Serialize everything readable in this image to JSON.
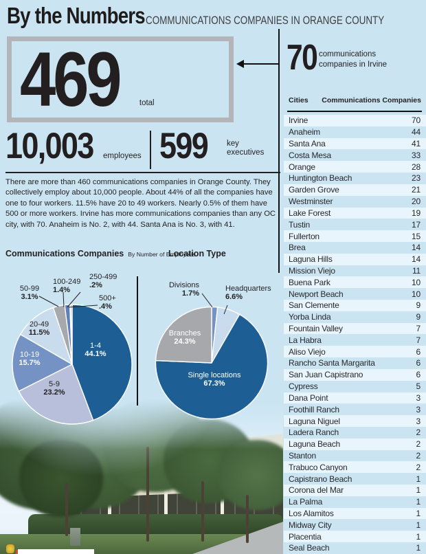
{
  "header": {
    "title": "By the Numbers",
    "subtitle": "COMMUNICATIONS COMPANIES IN ORANGE COUNTY"
  },
  "stats": {
    "total": {
      "value": "469",
      "label": "total"
    },
    "employees": {
      "value": "10,003",
      "label": "employees"
    },
    "executives": {
      "value": "599",
      "label": "key\nexecutives"
    }
  },
  "callout": {
    "value": "70",
    "label": "communications\ncompanies in Irvine"
  },
  "paragraph": "There are more than 460 communications companies in Orange County. They collectively employ about 10,000 people. About 44% of all the companies have one to four workers. 11.5% have 20 to 49 workers. Nearly 0.5% of them have 500 or more workers. Irvine has more communications companies than any OC city, with 70. Anaheim is No. 2, with 44. Santa Ana is No. 3, with 41.",
  "colors": {
    "background": "#cae4f2",
    "row_stripe": "#e9f5fc",
    "ink": "#231f20",
    "box_border": "#b3b5b8",
    "pie_dark_blue": "#1d5f94",
    "pie_medium_blue": "#7492c4",
    "pie_lavender": "#b8bfda",
    "pie_pale_blue": "#c9dcee",
    "pie_gray": "#a6a8ab",
    "pie_steel_blue": "#5d80ba",
    "pie_navy": "#232e55",
    "pie_gray2": "#97999c"
  },
  "chart_data": [
    {
      "type": "pie",
      "title": "Communications Companies",
      "subtitle": "By Number of Employees",
      "legend_position": "outside-callouts",
      "slices": [
        {
          "label": "1-4",
          "value": 44.1,
          "pct": "44.1%",
          "color": "#1d5f94"
        },
        {
          "label": "5-9",
          "value": 23.2,
          "pct": "23.2%",
          "color": "#b8bfda"
        },
        {
          "label": "10-19",
          "value": 15.7,
          "pct": "15.7%",
          "color": "#7492c4"
        },
        {
          "label": "20-49",
          "value": 11.5,
          "pct": "11.5%",
          "color": "#c9dcee"
        },
        {
          "label": "50-99",
          "value": 3.1,
          "pct": "3.1%",
          "color": "#a6a8ab"
        },
        {
          "label": "100-249",
          "value": 1.4,
          "pct": "1.4%",
          "color": "#5d80ba"
        },
        {
          "label": "250-499",
          "value": 0.2,
          "pct": ".2%",
          "color": "#232e55"
        },
        {
          "label": "500+",
          "value": 0.4,
          "pct": ".4%",
          "color": "#97999c"
        }
      ]
    },
    {
      "type": "pie",
      "title": "Location Type",
      "legend_position": "outside-callouts",
      "slices": [
        {
          "label": "Divisions",
          "value": 1.7,
          "pct": "1.7%",
          "color": "#7492c4"
        },
        {
          "label": "Headquarters",
          "value": 6.6,
          "pct": "6.6%",
          "color": "#c9dcee"
        },
        {
          "label": "Single locations",
          "value": 67.3,
          "pct": "67.3%",
          "color": "#1d5f94"
        },
        {
          "label": "Branches",
          "value": 24.3,
          "pct": "24.3%",
          "color": "#a6a8ab"
        }
      ]
    },
    {
      "type": "table",
      "columns": [
        "Cities",
        "Communications Companies"
      ],
      "rows": [
        [
          "Irvine",
          70
        ],
        [
          "Anaheim",
          44
        ],
        [
          "Santa Ana",
          41
        ],
        [
          "Costa Mesa",
          33
        ],
        [
          "Orange",
          28
        ],
        [
          "Huntington Beach",
          23
        ],
        [
          "Garden Grove",
          21
        ],
        [
          "Westminster",
          20
        ],
        [
          "Lake Forest",
          19
        ],
        [
          "Tustin",
          17
        ],
        [
          "Fullerton",
          15
        ],
        [
          "Brea",
          14
        ],
        [
          "Laguna Hills",
          14
        ],
        [
          "Mission Viejo",
          11
        ],
        [
          "Buena Park",
          10
        ],
        [
          "Newport Beach",
          10
        ],
        [
          "San Clemente",
          9
        ],
        [
          "Yorba Linda",
          9
        ],
        [
          "Fountain Valley",
          7
        ],
        [
          "La Habra",
          7
        ],
        [
          "Aliso Viejo",
          6
        ],
        [
          "Rancho Santa Margarita",
          6
        ],
        [
          "San Juan Capistrano",
          6
        ],
        [
          "Cypress",
          5
        ],
        [
          "Dana Point",
          3
        ],
        [
          "Foothill Ranch",
          3
        ],
        [
          "Laguna Niguel",
          3
        ],
        [
          "Ladera Ranch",
          2
        ],
        [
          "Laguna Beach",
          2
        ],
        [
          "Stanton",
          2
        ],
        [
          "Trabuco Canyon",
          2
        ],
        [
          "Capistrano Beach",
          1
        ],
        [
          "Corona del Mar",
          1
        ],
        [
          "La Palma",
          1
        ],
        [
          "Los Alamitos",
          1
        ],
        [
          "Midway City",
          1
        ],
        [
          "Placentia",
          1
        ],
        [
          "Seal Beach",
          1
        ]
      ]
    }
  ]
}
